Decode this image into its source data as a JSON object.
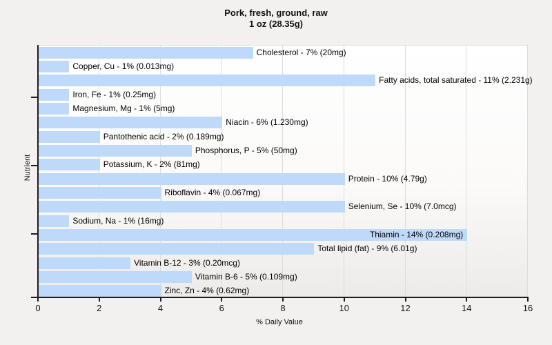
{
  "title": {
    "line1": "Pork, fresh, ground, raw",
    "line2": "1 oz (28.35g)"
  },
  "axes": {
    "x_label": "% Daily Value",
    "y_label": "Nutrient"
  },
  "colors": {
    "bar_fill": "#bed9f9",
    "gridline": "#dcdcdc",
    "axis_line": "#1c1c1c",
    "page_background": "#f2f1ef",
    "plot_gradient_top": "#ffffff",
    "plot_gradient_bottom": "#ecebe9",
    "text": "#111111"
  },
  "chart_data": {
    "type": "bar",
    "orientation": "horizontal",
    "title": "Pork, fresh, ground, raw 1 oz (28.35g)",
    "xlabel": "% Daily Value",
    "ylabel": "Nutrient",
    "xlim": [
      0,
      16
    ],
    "x_ticks": [
      0,
      2,
      4,
      6,
      8,
      10,
      12,
      14,
      16
    ],
    "grid": "vertical gridlines every 2 units",
    "legend": "none",
    "bars": [
      {
        "nutrient": "Cholesterol",
        "percent_dv": 7,
        "amount": "20mg",
        "label": "Cholesterol - 7% (20mg)"
      },
      {
        "nutrient": "Copper, Cu",
        "percent_dv": 1,
        "amount": "0.013mg",
        "label": "Copper, Cu - 1% (0.013mg)"
      },
      {
        "nutrient": "Fatty acids, total saturated",
        "percent_dv": 11,
        "amount": "2.231g",
        "label": "Fatty acids, total saturated - 11% (2.231g)"
      },
      {
        "nutrient": "Iron, Fe",
        "percent_dv": 1,
        "amount": "0.25mg",
        "label": "Iron, Fe - 1% (0.25mg)"
      },
      {
        "nutrient": "Magnesium, Mg",
        "percent_dv": 1,
        "amount": "5mg",
        "label": "Magnesium, Mg - 1% (5mg)"
      },
      {
        "nutrient": "Niacin",
        "percent_dv": 6,
        "amount": "1.230mg",
        "label": "Niacin - 6% (1.230mg)"
      },
      {
        "nutrient": "Pantothenic acid",
        "percent_dv": 2,
        "amount": "0.189mg",
        "label": "Pantothenic acid - 2% (0.189mg)"
      },
      {
        "nutrient": "Phosphorus, P",
        "percent_dv": 5,
        "amount": "50mg",
        "label": "Phosphorus, P - 5% (50mg)"
      },
      {
        "nutrient": "Potassium, K",
        "percent_dv": 2,
        "amount": "81mg",
        "label": "Potassium, K - 2% (81mg)"
      },
      {
        "nutrient": "Protein",
        "percent_dv": 10,
        "amount": "4.79g",
        "label": "Protein - 10% (4.79g)"
      },
      {
        "nutrient": "Riboflavin",
        "percent_dv": 4,
        "amount": "0.067mg",
        "label": "Riboflavin - 4% (0.067mg)"
      },
      {
        "nutrient": "Selenium, Se",
        "percent_dv": 10,
        "amount": "7.0mcg",
        "label": "Selenium, Se - 10% (7.0mcg)"
      },
      {
        "nutrient": "Sodium, Na",
        "percent_dv": 1,
        "amount": "16mg",
        "label": "Sodium, Na - 1% (16mg)"
      },
      {
        "nutrient": "Thiamin",
        "percent_dv": 14,
        "amount": "0.208mg",
        "label": "Thiamin - 14% (0.208mg)",
        "label_inside": true
      },
      {
        "nutrient": "Total lipid (fat)",
        "percent_dv": 9,
        "amount": "6.01g",
        "label": "Total lipid (fat) - 9% (6.01g)"
      },
      {
        "nutrient": "Vitamin B-12",
        "percent_dv": 3,
        "amount": "0.20mcg",
        "label": "Vitamin B-12 - 3% (0.20mcg)"
      },
      {
        "nutrient": "Vitamin B-6",
        "percent_dv": 5,
        "amount": "0.109mg",
        "label": "Vitamin B-6 - 5% (0.109mg)"
      },
      {
        "nutrient": "Zinc, Zn",
        "percent_dv": 4,
        "amount": "0.62mg",
        "label": "Zinc, Zn - 4% (0.62mg)"
      }
    ]
  }
}
